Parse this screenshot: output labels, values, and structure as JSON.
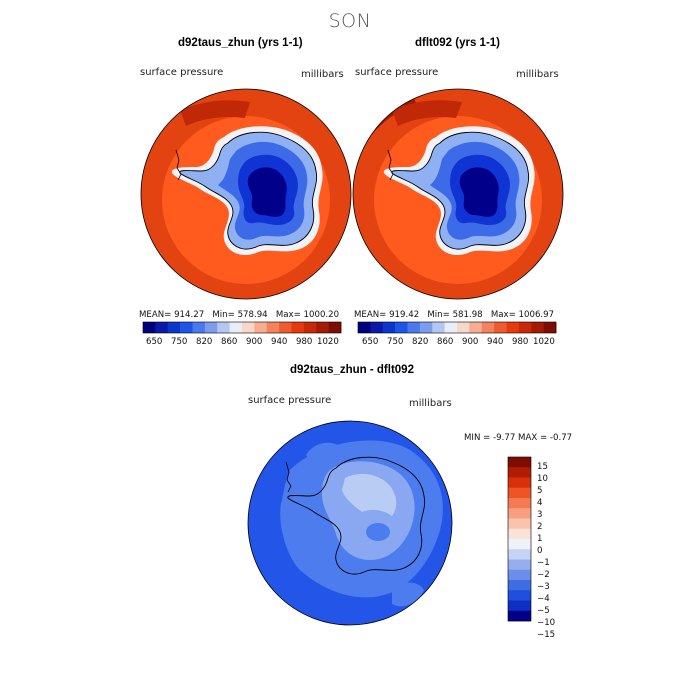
{
  "figure_title": "SON",
  "panels": [
    {
      "title": "d92taus_zhun (yrs 1-1)",
      "field": "surface pressure",
      "units": "millibars",
      "stats": {
        "mean_label": "MEAN=",
        "mean": "914.27",
        "min_label": "Min=",
        "min": "578.94",
        "max_label": "Max=",
        "max": "1000.20"
      }
    },
    {
      "title": "dflt092 (yrs 1-1)",
      "field": "surface pressure",
      "units": "millibars",
      "stats": {
        "mean_label": "MEAN=",
        "mean": "919.42",
        "min_label": "Min=",
        "min": "581.98",
        "max_label": "Max=",
        "max": "1006.97"
      }
    },
    {
      "title": "d92taus_zhun - dflt092",
      "field": "surface pressure",
      "units": "millibars",
      "stats": {
        "min_label": "MIN =",
        "min": "-9.77",
        "max_label": "MAX =",
        "max": "-0.77"
      }
    }
  ],
  "colorbar_top": {
    "labels": [
      "650",
      "750",
      "820",
      "860",
      "900",
      "940",
      "980",
      "1020"
    ],
    "colors": [
      "#00007f",
      "#0a1aa8",
      "#0a36cc",
      "#1f55e6",
      "#4a78ee",
      "#7d9cf0",
      "#b4c7f2",
      "#e8eef8",
      "#f8d7c9",
      "#f7ad90",
      "#f4825d",
      "#ef5a2f",
      "#e43a0e",
      "#c82806",
      "#a41a02",
      "#7f0c00"
    ]
  },
  "colorbar_diff": {
    "labels": [
      "15",
      "10",
      "5",
      "4",
      "3",
      "2",
      "1",
      "0",
      "−1",
      "−2",
      "−3",
      "−4",
      "−5",
      "−10",
      "−15"
    ],
    "colors": [
      "#7f0c00",
      "#b21c02",
      "#d8300a",
      "#ef5426",
      "#f47a52",
      "#f79f80",
      "#f9c4ad",
      "#fbe2d6",
      "#eef2fa",
      "#c5d4f4",
      "#95afee",
      "#6a8ee9",
      "#3f6de4",
      "#1f4fdc",
      "#0d2fc2",
      "#000088"
    ]
  },
  "map_colors": {
    "ocean_outer": "#e24311",
    "ocean_inner": "#ff5b1f",
    "dark_edge": "#c02808",
    "coast_white": "#f1f3f7",
    "ice_light": "#8fb0f2",
    "ice_mid": "#3d6be7",
    "ice_deep": "#1034d4",
    "ice_core": "#00008b",
    "diff_base": "#2356e8",
    "diff_mid": "#4c7ced",
    "diff_light": "#8aa8f1",
    "diff_pale": "#b9cdf4"
  }
}
